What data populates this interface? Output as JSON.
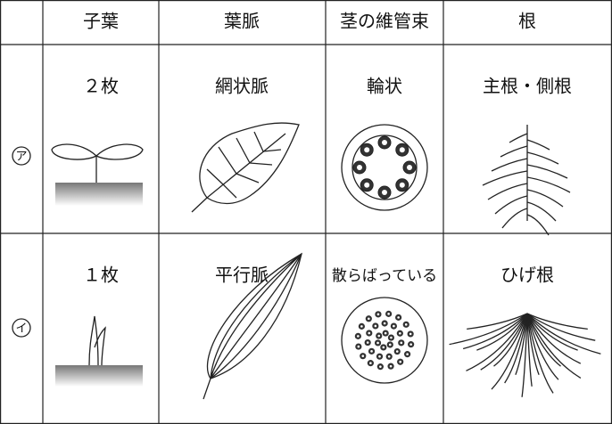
{
  "table": {
    "header": [
      "子葉",
      "葉脈",
      "茎の維管束",
      "根"
    ],
    "rows": [
      {
        "label": "ア",
        "cells": [
          "２枚",
          "網状脈",
          "輪状",
          "主根・側根"
        ]
      },
      {
        "label": "イ",
        "cells": [
          "１枚",
          "平行脈",
          "散らばっている",
          "ひげ根"
        ]
      }
    ]
  }
}
